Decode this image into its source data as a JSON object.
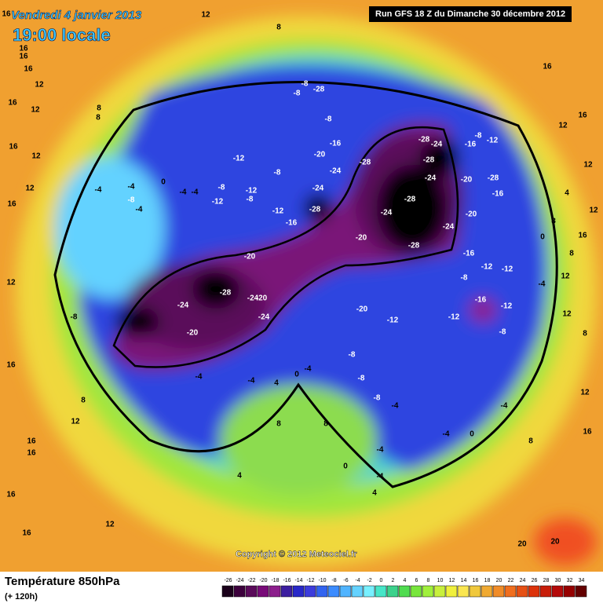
{
  "header": {
    "date": "Vendredi 4 janvier 2013",
    "time": "19:00 locale",
    "run": "Run GFS 18 Z du Dimanche 30 décembre 2012"
  },
  "copyright": "Copyright © 2012 Meteociel.fr",
  "legend": {
    "title": "Température 850hPa",
    "lead": "(+ 120h)",
    "ticks": [
      -26,
      -24,
      -22,
      -20,
      -18,
      -16,
      -14,
      -12,
      -10,
      -8,
      -6,
      -4,
      -2,
      0,
      2,
      4,
      6,
      8,
      10,
      12,
      14,
      16,
      18,
      20,
      22,
      24,
      26,
      28,
      30,
      32,
      34
    ],
    "colors": [
      "#1a001a",
      "#3c003c",
      "#5a0a5a",
      "#780a78",
      "#8c1e8c",
      "#3c1ea0",
      "#2828c8",
      "#3c3cdc",
      "#3264f0",
      "#3c8cff",
      "#50b4ff",
      "#64d2ff",
      "#78f0ff",
      "#46e6c8",
      "#3cd28c",
      "#50dc50",
      "#78e63c",
      "#a0f03c",
      "#c8f03c",
      "#f0f03c",
      "#fae650",
      "#f0c83c",
      "#f0aa32",
      "#f08c28",
      "#f06e1e",
      "#e65014",
      "#dc320a",
      "#c81e0a",
      "#b40a0a",
      "#960000",
      "#640000"
    ]
  },
  "contour_labels": [
    12,
    8,
    16,
    16,
    16,
    16,
    12,
    16,
    12,
    8,
    8,
    12,
    16,
    12,
    16,
    12,
    16,
    8,
    12,
    16,
    16,
    16,
    12,
    16,
    16,
    12,
    16,
    12,
    4,
    8,
    12,
    8,
    16,
    12,
    12,
    8,
    12,
    16,
    8,
    20,
    20,
    -8,
    -8,
    -28,
    -8,
    -16,
    -20,
    -28,
    -24,
    -24,
    -28,
    -24,
    -28,
    -20,
    -28,
    -28,
    -24,
    -28,
    -24,
    -16,
    -8,
    -12,
    -20,
    -28,
    -16,
    -20,
    -24,
    -16,
    -12,
    -8,
    -12,
    -16,
    -12,
    -12,
    -8,
    -12,
    -20,
    -12,
    -8,
    -8,
    -12,
    -12,
    -8,
    -12,
    -16,
    -20,
    -28,
    -24,
    -24,
    -20,
    -24,
    -20,
    -8,
    -4,
    -4,
    4,
    0,
    -4,
    -8,
    -8,
    -8,
    -4,
    -4,
    0,
    -4,
    -4,
    0,
    -4,
    4,
    4,
    8,
    8,
    -4,
    -8,
    -4,
    -4,
    0,
    -4,
    -4,
    0,
    -4
  ]
}
